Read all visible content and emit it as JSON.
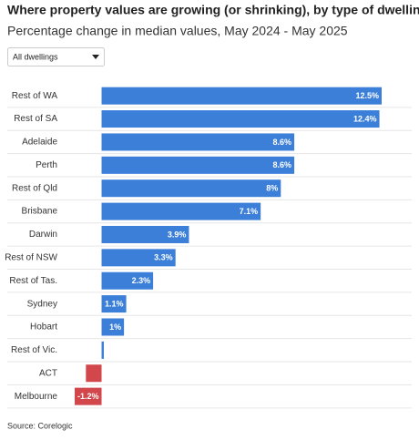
{
  "chart_data": {
    "type": "bar",
    "orientation": "horizontal",
    "title": "Where property values are growing (or shrinking), by type of dwelling",
    "subtitle": "Percentage change in median values, May 2024 - May 2025",
    "dropdown": "All dwellings",
    "source": "Source: Corelogic",
    "categories": [
      "Rest of WA",
      "Rest of SA",
      "Adelaide",
      "Perth",
      "Rest of Qld",
      "Brisbane",
      "Darwin",
      "Rest of NSW",
      "Rest of Tas.",
      "Sydney",
      "Hobart",
      "Rest of Vic.",
      "ACT",
      "Melbourne"
    ],
    "values": [
      12.5,
      12.4,
      8.6,
      8.6,
      8,
      7.1,
      3.9,
      3.3,
      2.3,
      1.1,
      1,
      0.1,
      -0.7,
      -1.2
    ],
    "value_labels": [
      "12.5%",
      "12.4%",
      "8.6%",
      "8.6%",
      "8%",
      "7.1%",
      "3.9%",
      "3.3%",
      "2.3%",
      "1.1%",
      "1%",
      null,
      null,
      "-1.2%"
    ],
    "color": "#3b7fd9",
    "negative_color": "#d2474b"
  }
}
